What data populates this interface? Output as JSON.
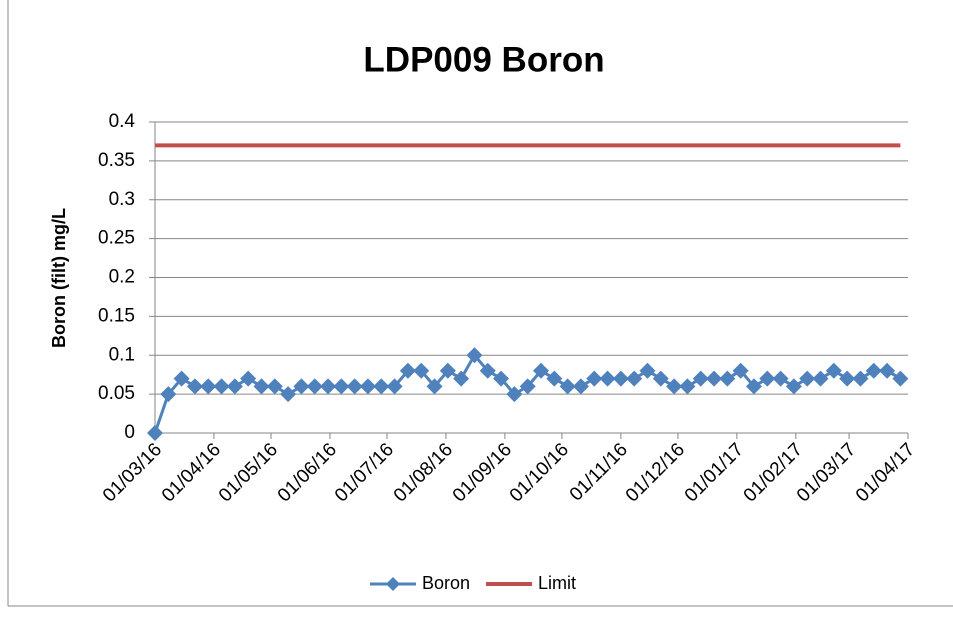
{
  "chart_data": {
    "type": "line",
    "title": "LDP009 Boron",
    "y_label": "Boron (filt) mg/L",
    "xlim": [
      "01/03/16",
      "01/04/17"
    ],
    "xticks": [
      "01/03/16",
      "01/04/16",
      "01/05/16",
      "01/06/16",
      "01/07/16",
      "01/08/16",
      "01/09/16",
      "01/10/16",
      "01/11/16",
      "01/12/16",
      "01/01/17",
      "01/02/17",
      "01/03/17",
      "01/04/17"
    ],
    "ylim": [
      0,
      0.4
    ],
    "yticks": [
      0,
      0.05,
      0.1,
      0.15,
      0.2,
      0.25,
      0.3,
      0.35,
      0.4
    ],
    "grid": true,
    "legend": "bottom",
    "series": [
      {
        "name": "Boron",
        "color": "#4f81bd",
        "marker": "diamond",
        "x": [
          "01/03/16",
          "08/03/16",
          "15/03/16",
          "22/03/16",
          "29/03/16",
          "05/04/16",
          "12/04/16",
          "19/04/16",
          "26/04/16",
          "03/05/16",
          "10/05/16",
          "17/05/16",
          "24/05/16",
          "31/05/16",
          "07/06/16",
          "14/06/16",
          "21/06/16",
          "28/06/16",
          "05/07/16",
          "12/07/16",
          "19/07/16",
          "26/07/16",
          "02/08/16",
          "09/08/16",
          "16/08/16",
          "23/08/16",
          "30/08/16",
          "06/09/16",
          "13/09/16",
          "20/09/16",
          "27/09/16",
          "04/10/16",
          "11/10/16",
          "18/10/16",
          "25/10/16",
          "01/11/16",
          "08/11/16",
          "15/11/16",
          "22/11/16",
          "29/11/16",
          "06/12/16",
          "13/12/16",
          "20/12/16",
          "27/12/16",
          "03/01/17",
          "10/01/17",
          "17/01/17",
          "24/01/17",
          "31/01/17",
          "07/02/17",
          "14/02/17",
          "21/02/17",
          "28/02/17",
          "07/03/17",
          "14/03/17",
          "21/03/17",
          "28/03/17"
        ],
        "values": [
          0,
          0.05,
          0.07,
          0.06,
          0.06,
          0.06,
          0.06,
          0.07,
          0.06,
          0.06,
          0.05,
          0.06,
          0.06,
          0.06,
          0.06,
          0.06,
          0.06,
          0.06,
          0.06,
          0.08,
          0.08,
          0.06,
          0.08,
          0.07,
          0.1,
          0.08,
          0.07,
          0.05,
          0.06,
          0.08,
          0.07,
          0.06,
          0.06,
          0.07,
          0.07,
          0.07,
          0.07,
          0.08,
          0.07,
          0.06,
          0.06,
          0.07,
          0.07,
          0.07,
          0.08,
          0.06,
          0.07,
          0.07,
          0.06,
          0.07,
          0.07,
          0.08,
          0.07,
          0.07,
          0.08,
          0.08,
          0.07
        ]
      },
      {
        "name": "Limit",
        "color": "#c0504d",
        "x": [
          "01/03/16",
          "28/03/17"
        ],
        "values": [
          0.37,
          0.37
        ]
      }
    ]
  }
}
